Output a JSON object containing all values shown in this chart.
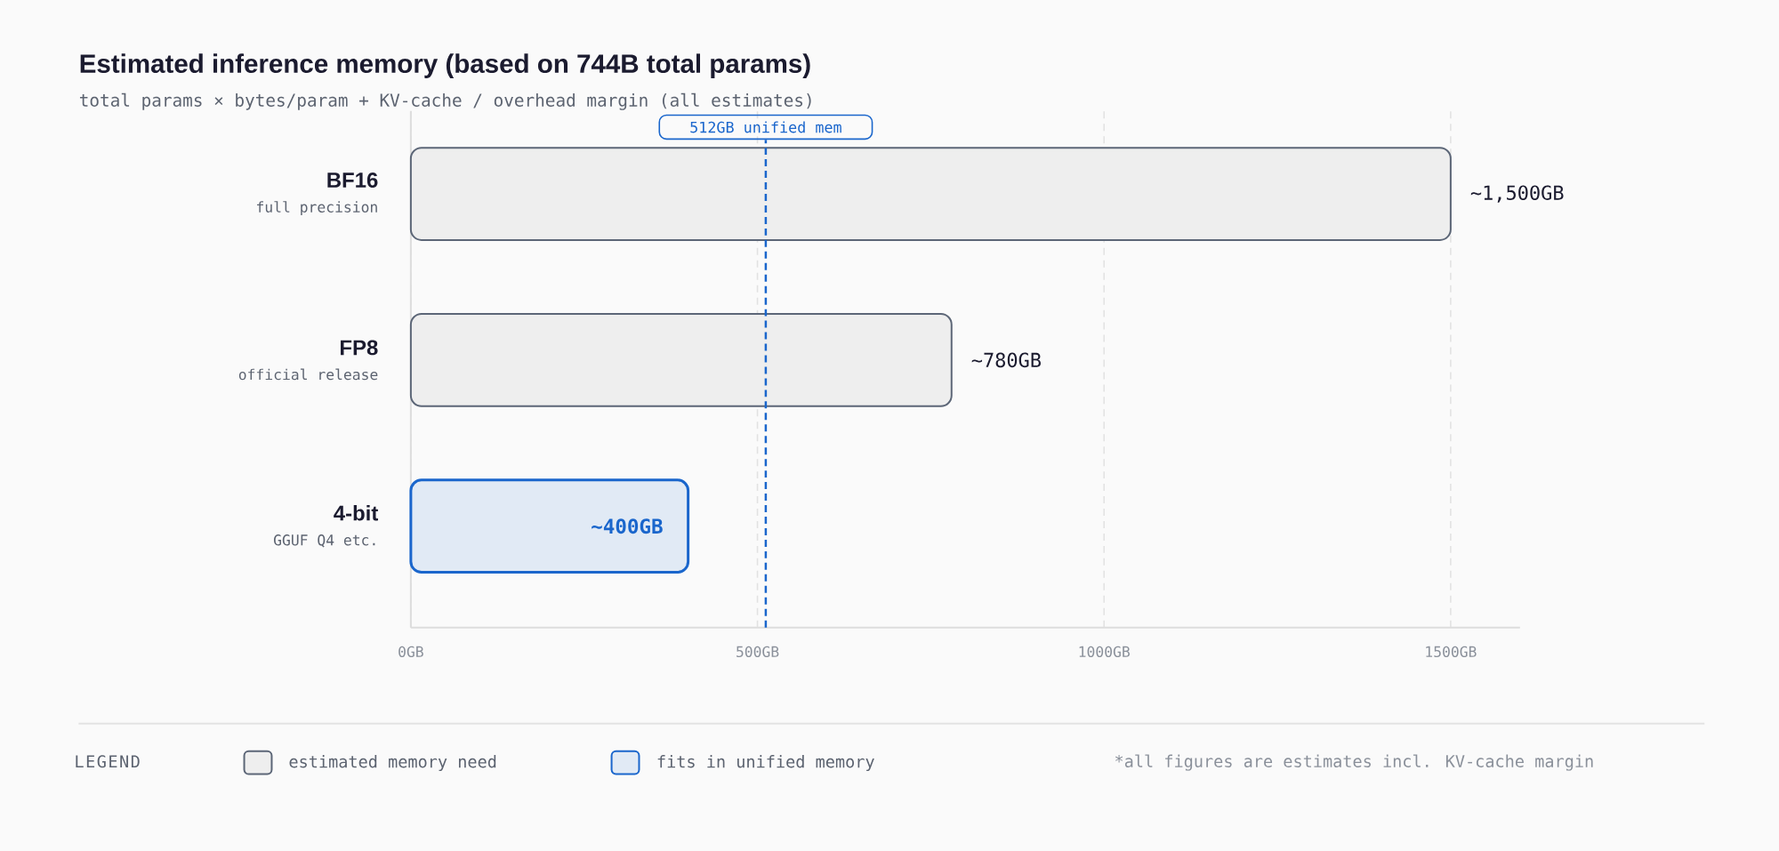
{
  "chart_data": {
    "type": "bar",
    "orientation": "horizontal",
    "title": "Estimated inference memory (based on 744B total params)",
    "subtitle": "total params × bytes/param + KV-cache / overhead margin (all estimates)",
    "categories": [
      "BF16\nfull precision",
      "FP8\nofficial release",
      "4-bit\nGGUF Q4 etc."
    ],
    "series": [
      {
        "name": "estimated memory need",
        "color": "#eeeeee",
        "values": [
          1500,
          780,
          null
        ],
        "value_labels": [
          "~1,500GB",
          "~780GB",
          null
        ]
      },
      {
        "name": "fits in unified memory",
        "color": "#e1eaf5",
        "values": [
          null,
          null,
          400
        ],
        "value_labels": [
          null,
          null,
          "~400GB"
        ]
      }
    ],
    "xlim": [
      0,
      1600
    ],
    "xticks": [
      {
        "value": 0,
        "label": "0GB"
      },
      {
        "value": 500,
        "label": "500GB"
      },
      {
        "value": 1000,
        "label": "1000GB"
      },
      {
        "value": 1500,
        "label": "1500GB"
      }
    ],
    "grid": "x",
    "legend": "bottom",
    "legend_title": "LEGEND",
    "ref_lines": [
      {
        "axis": "x",
        "value": 512,
        "label": "512GB unified mem",
        "color": "#1a66cc",
        "line_style": "dashed"
      }
    ],
    "annotations": [
      "*all figures are estimates incl. KV-cache margin"
    ]
  }
}
